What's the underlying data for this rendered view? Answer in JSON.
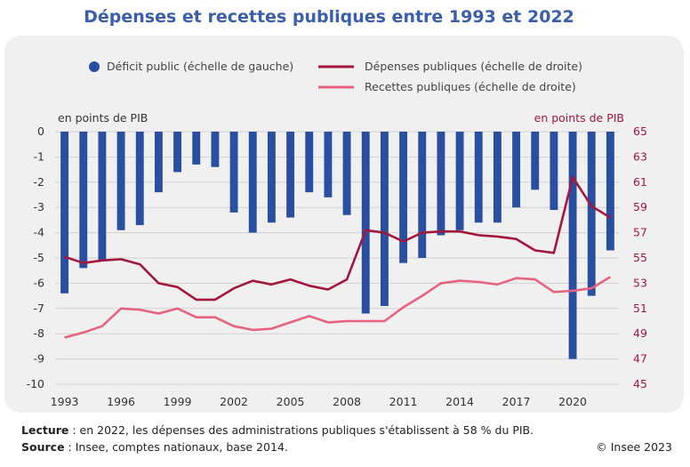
{
  "chart_data": {
    "type": "bar+line",
    "title": "Dépenses et recettes publiques entre 1993 et 2022",
    "left_axis_label": "en points de PIB",
    "right_axis_label": "en points de PIB",
    "left_ylim": [
      -10,
      0
    ],
    "right_ylim": [
      45,
      65
    ],
    "left_ticks": [
      0,
      -1,
      -2,
      -3,
      -4,
      -5,
      -6,
      -7,
      -8,
      -9,
      -10
    ],
    "right_ticks": [
      65,
      63,
      61,
      59,
      57,
      55,
      53,
      51,
      49,
      47,
      45
    ],
    "x_tick_labels": [
      "1993",
      "1996",
      "1999",
      "2002",
      "2005",
      "2008",
      "2011",
      "2014",
      "2017",
      "2020"
    ],
    "years": [
      1993,
      1994,
      1995,
      1996,
      1997,
      1998,
      1999,
      2000,
      2001,
      2002,
      2003,
      2004,
      2005,
      2006,
      2007,
      2008,
      2009,
      2010,
      2011,
      2012,
      2013,
      2014,
      2015,
      2016,
      2017,
      2018,
      2019,
      2020,
      2021,
      2022
    ],
    "series": [
      {
        "name": "Déficit public (échelle de gauche)",
        "type": "bar",
        "axis": "left",
        "color": "#2a4fa0",
        "values": [
          -6.4,
          -5.4,
          -5.1,
          -3.9,
          -3.7,
          -2.4,
          -1.6,
          -1.3,
          -1.4,
          -3.2,
          -4.0,
          -3.6,
          -3.4,
          -2.4,
          -2.6,
          -3.3,
          -7.2,
          -6.9,
          -5.2,
          -5.0,
          -4.1,
          -3.9,
          -3.6,
          -3.6,
          -3.0,
          -2.3,
          -3.1,
          -9.0,
          -6.5,
          -4.7
        ]
      },
      {
        "name": "Dépenses publiques (échelle de droite)",
        "type": "line",
        "axis": "right",
        "color": "#a3173d",
        "values": [
          55.1,
          54.6,
          54.8,
          54.9,
          54.5,
          53.0,
          52.7,
          51.7,
          51.7,
          52.6,
          53.2,
          52.9,
          53.3,
          52.8,
          52.5,
          53.3,
          57.2,
          57.0,
          56.3,
          57.0,
          57.1,
          57.1,
          56.8,
          56.7,
          56.5,
          55.6,
          55.4,
          61.4,
          59.1,
          58.2
        ]
      },
      {
        "name": "Recettes publiques (échelle de droite)",
        "type": "line",
        "axis": "right",
        "color": "#e5637f",
        "values": [
          48.7,
          49.1,
          49.6,
          51.0,
          50.9,
          50.6,
          51.0,
          50.3,
          50.3,
          49.6,
          49.3,
          49.4,
          49.9,
          50.4,
          49.9,
          50.0,
          50.0,
          50.0,
          51.1,
          52.0,
          53.0,
          53.2,
          53.1,
          52.9,
          53.4,
          53.3,
          52.3,
          52.4,
          52.6,
          53.5
        ]
      }
    ]
  },
  "footer": {
    "lecture_label": "Lecture",
    "lecture_text": " : en 2022, les dépenses des administrations publiques s'établissent à 58 % du PIB.",
    "source_label": "Source",
    "source_text": " : Insee, comptes nationaux, base 2014.",
    "copyright": "© Insee 2023"
  }
}
